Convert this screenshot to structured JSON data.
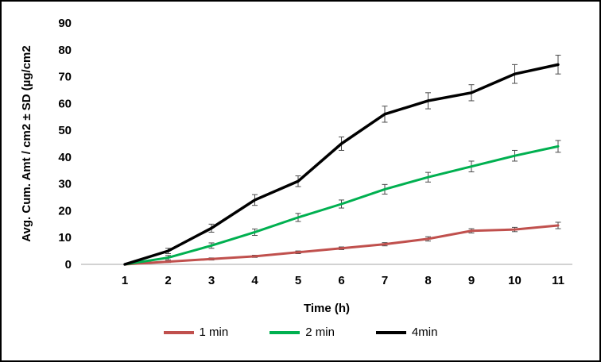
{
  "chart_data": {
    "type": "line",
    "title": "",
    "xlabel": "Time (h)",
    "ylabel": "Avg. Cum. Amt / cm2 ± SD (µg/cm2",
    "x": [
      1,
      2,
      3,
      4,
      5,
      6,
      7,
      8,
      9,
      10,
      11
    ],
    "xlim": [
      1,
      11
    ],
    "ylim": [
      0,
      90
    ],
    "yticks": [
      0,
      10,
      20,
      30,
      40,
      50,
      60,
      70,
      80,
      90
    ],
    "grid": false,
    "legend_position": "bottom",
    "axis_color": "#a6a6a6",
    "error_bar_color": "#4a4a4a",
    "series": [
      {
        "name": "1 min",
        "color": "#c0504d",
        "width": 3,
        "values": [
          0,
          1,
          2,
          3,
          4.5,
          6,
          7.5,
          9.5,
          12.5,
          13,
          14.5
        ],
        "errors": [
          0,
          0.3,
          0.4,
          0.4,
          0.5,
          0.5,
          0.6,
          0.8,
          0.8,
          0.8,
          1.2
        ]
      },
      {
        "name": "2 min",
        "color": "#00b050",
        "width": 3,
        "values": [
          0,
          2.5,
          7,
          12,
          17.5,
          22.5,
          28,
          32.5,
          36.5,
          40.5,
          44
        ],
        "errors": [
          0,
          0.8,
          1,
          1.2,
          1.5,
          1.5,
          1.8,
          1.8,
          2,
          2,
          2.2
        ]
      },
      {
        "name": "4min",
        "color": "#000000",
        "width": 3.5,
        "values": [
          0,
          5,
          13.5,
          24,
          31,
          45,
          56,
          61,
          64,
          71,
          74.5
        ],
        "errors": [
          0,
          1,
          1.5,
          2,
          2,
          2.5,
          3,
          3,
          3,
          3.5,
          3.5
        ]
      }
    ]
  }
}
